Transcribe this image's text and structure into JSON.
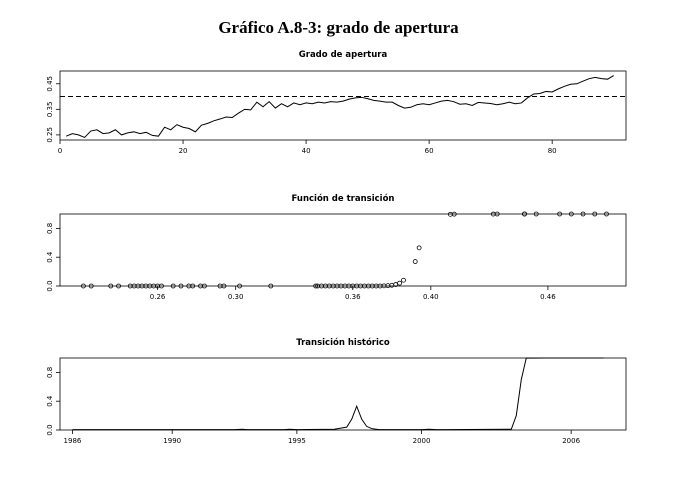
{
  "main_title": "Gráfico A.8-3: grado de apertura",
  "chart_data": [
    {
      "type": "line",
      "title": "Grado de apertura",
      "xlabel": "",
      "ylabel": "",
      "xlim": [
        0,
        92
      ],
      "ylim": [
        0.23,
        0.5
      ],
      "x_ticks": [
        0,
        20,
        40,
        60,
        80
      ],
      "y_ticks": [
        0.25,
        0.35,
        0.45
      ],
      "y_tick_labels": [
        "0.25",
        "0.35",
        "0.45"
      ],
      "threshold": 0.4,
      "threshold_style": "dashed",
      "series": [
        {
          "x": [
            1,
            2,
            3,
            4,
            5,
            6,
            7,
            8,
            9,
            10,
            11,
            12,
            13,
            14,
            15,
            16,
            17,
            18,
            19,
            20,
            21,
            22,
            23,
            24,
            25,
            26,
            27,
            28,
            29,
            30,
            31,
            32,
            33,
            34,
            35,
            36,
            37,
            38,
            39,
            40,
            41,
            42,
            43,
            44,
            45,
            46,
            47,
            48,
            49,
            50,
            51,
            52,
            53,
            54,
            55,
            56,
            57,
            58,
            59,
            60,
            61,
            62,
            63,
            64,
            65,
            66,
            67,
            68,
            69,
            70,
            71,
            72,
            73,
            74,
            75,
            76,
            77,
            78,
            79,
            80,
            81,
            82,
            83,
            84,
            85,
            86,
            87,
            88,
            89,
            90
          ],
          "values": [
            0.245,
            0.255,
            0.25,
            0.24,
            0.265,
            0.27,
            0.255,
            0.258,
            0.27,
            0.25,
            0.258,
            0.262,
            0.255,
            0.26,
            0.248,
            0.245,
            0.28,
            0.27,
            0.29,
            0.28,
            0.275,
            0.262,
            0.288,
            0.295,
            0.305,
            0.312,
            0.32,
            0.318,
            0.335,
            0.35,
            0.348,
            0.378,
            0.36,
            0.38,
            0.355,
            0.372,
            0.36,
            0.375,
            0.368,
            0.375,
            0.372,
            0.378,
            0.375,
            0.38,
            0.378,
            0.382,
            0.39,
            0.395,
            0.397,
            0.392,
            0.385,
            0.382,
            0.378,
            0.378,
            0.365,
            0.355,
            0.358,
            0.368,
            0.372,
            0.368,
            0.375,
            0.382,
            0.385,
            0.38,
            0.37,
            0.372,
            0.365,
            0.377,
            0.375,
            0.373,
            0.368,
            0.372,
            0.378,
            0.372,
            0.375,
            0.395,
            0.41,
            0.412,
            0.42,
            0.418,
            0.43,
            0.44,
            0.448,
            0.45,
            0.46,
            0.47,
            0.475,
            0.47,
            0.468,
            0.482
          ]
        }
      ]
    },
    {
      "type": "scatter",
      "title": "Función de transición",
      "xlabel": "",
      "ylabel": "",
      "xlim": [
        0.21,
        0.5
      ],
      "ylim": [
        0,
        1.0
      ],
      "x_ticks": [
        0.26,
        0.3,
        0.36,
        0.4,
        0.46
      ],
      "x_tick_labels": [
        "0.26",
        "0.30",
        "0.36",
        "0.40",
        "0.46"
      ],
      "y_ticks": [
        0.0,
        0.4,
        0.8
      ],
      "y_tick_labels": [
        "0.0",
        "0.4",
        "0.8"
      ],
      "series": [
        {
          "x": [
            0.222,
            0.226,
            0.236,
            0.24,
            0.246,
            0.248,
            0.25,
            0.252,
            0.254,
            0.256,
            0.258,
            0.26,
            0.262,
            0.268,
            0.272,
            0.276,
            0.278,
            0.282,
            0.284,
            0.292,
            0.294,
            0.302,
            0.318,
            0.341,
            0.342,
            0.344,
            0.346,
            0.348,
            0.35,
            0.352,
            0.354,
            0.356,
            0.358,
            0.36,
            0.362,
            0.364,
            0.366,
            0.368,
            0.37,
            0.372,
            0.374,
            0.376,
            0.378,
            0.38,
            0.382,
            0.384,
            0.386,
            0.392,
            0.394,
            0.41,
            0.412,
            0.432,
            0.434,
            0.448,
            0.448,
            0.454,
            0.466,
            0.472,
            0.478,
            0.484,
            0.49
          ],
          "values": [
            0,
            0,
            0,
            0,
            0,
            0,
            0,
            0,
            0,
            0,
            0,
            0,
            0,
            0,
            0,
            0,
            0,
            0,
            0,
            0,
            0,
            0,
            0,
            0,
            0,
            0,
            0,
            0,
            0,
            0,
            0,
            0,
            0,
            0,
            0,
            0,
            0,
            0,
            0,
            0,
            0,
            0.002,
            0.005,
            0.01,
            0.02,
            0.04,
            0.08,
            0.34,
            0.53,
            0.995,
            0.998,
            0.999,
            1,
            1,
            1,
            1,
            1,
            1,
            1,
            1,
            1
          ]
        }
      ]
    },
    {
      "type": "line",
      "title": "Transición histórico",
      "xlabel": "",
      "ylabel": "",
      "xlim": [
        1985.5,
        2008.2
      ],
      "ylim": [
        0,
        1.0
      ],
      "x_ticks": [
        1986,
        1990,
        1995,
        2000,
        2006
      ],
      "x_tick_labels": [
        "1986",
        "1990",
        "1995",
        "2000",
        "2006"
      ],
      "y_ticks": [
        0.0,
        0.4,
        0.8
      ],
      "y_tick_labels": [
        "0.0",
        "0.4",
        "0.8"
      ],
      "series": [
        {
          "x": [
            1986,
            1992.5,
            1992.8,
            1993,
            1994.5,
            1994.7,
            1995,
            1996.5,
            1997,
            1997.2,
            1997.4,
            1997.6,
            1997.8,
            1998,
            1998.3,
            2000,
            2000.3,
            2000.6,
            2001,
            2003.6,
            2003.8,
            2004,
            2004.2,
            2004.4,
            2005,
            2006,
            2007.3
          ],
          "values": [
            0.005,
            0.005,
            0.01,
            0.005,
            0.005,
            0.01,
            0.005,
            0.01,
            0.04,
            0.15,
            0.33,
            0.15,
            0.05,
            0.02,
            0.005,
            0.005,
            0.01,
            0.005,
            0.005,
            0.01,
            0.2,
            0.7,
            1.0,
            0.998,
            1.0,
            1.0,
            1.0
          ]
        }
      ]
    }
  ]
}
